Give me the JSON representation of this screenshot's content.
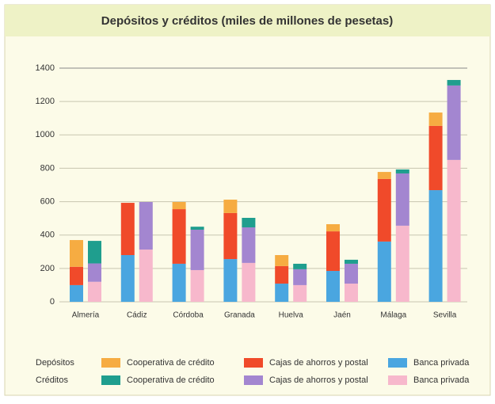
{
  "chart_data": {
    "type": "bar",
    "stacked": true,
    "title": "Depósitos y créditos (miles de millones de pesetas)",
    "categories": [
      "Almería",
      "Cádiz",
      "Córdoba",
      "Granada",
      "Huelva",
      "Jaén",
      "Málaga",
      "Sevilla"
    ],
    "ylim": [
      0,
      1400
    ],
    "yticks": [
      0,
      200,
      400,
      600,
      800,
      1000,
      1200,
      1400
    ],
    "grid": true,
    "groups": [
      {
        "name": "Depósitos",
        "series": [
          {
            "name": "Banca privada",
            "color": "#4aa6e0",
            "values": [
              100,
              280,
              228,
              256,
              109,
              185,
              361,
              669
            ]
          },
          {
            "name": "Cajas de ahorros y postal",
            "color": "#f04a2a",
            "values": [
              110,
              313,
              327,
              276,
              105,
              237,
              375,
              385
            ]
          },
          {
            "name": "Cooperativa de crédito",
            "color": "#f6ac42",
            "values": [
              160,
              0,
              43,
              80,
              66,
              43,
              42,
              80
            ]
          }
        ]
      },
      {
        "name": "Créditos",
        "series": [
          {
            "name": "Banca privada",
            "color": "#f7b8cc",
            "values": [
              120,
              313,
              190,
              233,
              100,
              109,
              456,
              850
            ]
          },
          {
            "name": "Cajas de ahorros y postal",
            "color": "#a386d0",
            "values": [
              110,
              285,
              242,
              213,
              95,
              119,
              313,
              446
            ]
          },
          {
            "name": "Cooperativa de crédito",
            "color": "#1f9e8e",
            "values": [
              135,
              0,
              18,
              57,
              33,
              24,
              24,
              33
            ]
          }
        ]
      }
    ]
  }
}
